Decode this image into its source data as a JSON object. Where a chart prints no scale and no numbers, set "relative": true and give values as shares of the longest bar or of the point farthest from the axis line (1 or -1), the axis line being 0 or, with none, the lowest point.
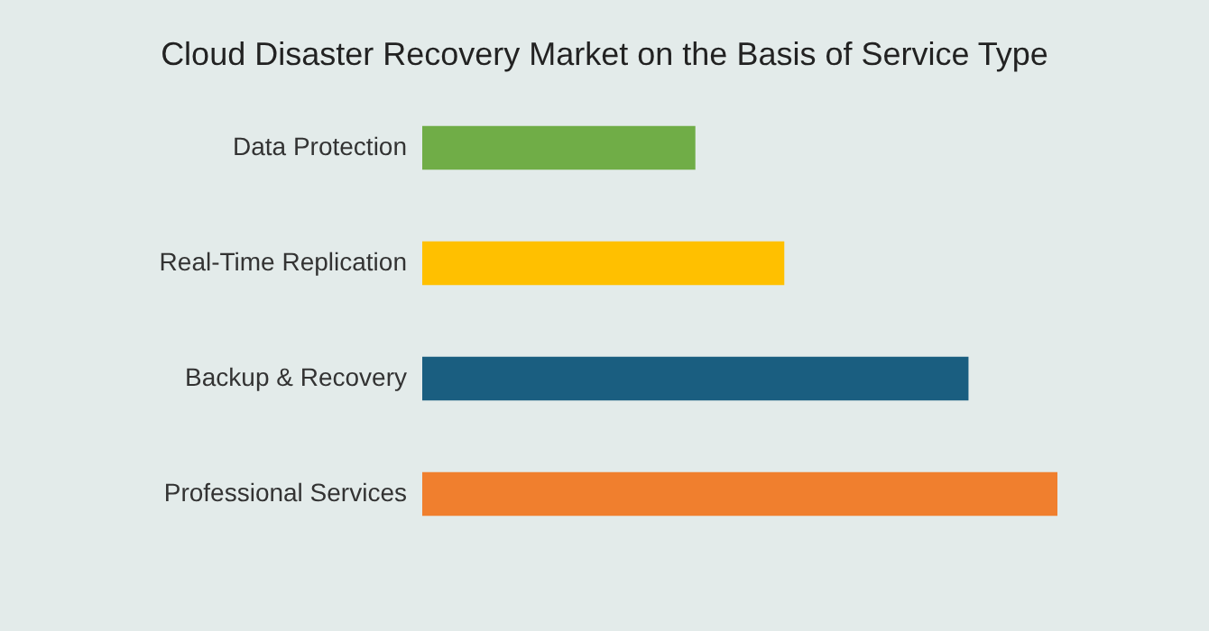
{
  "chart_data": {
    "type": "bar",
    "orientation": "horizontal",
    "relative": true,
    "title": "Cloud Disaster Recovery Market on the Basis of Service Type",
    "categories": [
      "Data Protection",
      "Real-Time Replication",
      "Backup & Recovery",
      "Professional Services"
    ],
    "values": [
      0.43,
      0.57,
      0.86,
      1.0
    ],
    "colors": [
      "#70ad47",
      "#ffc000",
      "#1a5e80",
      "#f07f2e"
    ]
  }
}
